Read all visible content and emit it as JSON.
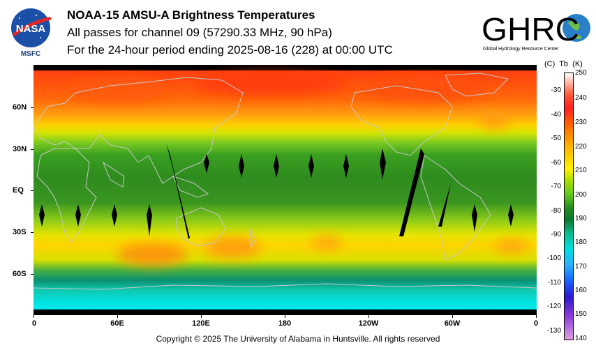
{
  "header": {
    "title": "NOAA-15 AMSU-A Brightness Temperatures",
    "line2": "All passes for channel 09 (57290.33 MHz, 90 hPa)",
    "line3": "For the 24-hour period ending 2025-08-16 (228) at 00:00 UTC"
  },
  "logos": {
    "nasa_text": "NASA",
    "nasa_sub": "MSFC",
    "ghrc_text": "GHRC",
    "ghrc_sub": "Global Hydrology Resource Center"
  },
  "map": {
    "x_labels": [
      "0",
      "60E",
      "120E",
      "180",
      "120W",
      "60W",
      "0"
    ],
    "y_labels": [
      "60N",
      "30N",
      "EQ",
      "30S",
      "60S"
    ]
  },
  "colorbar": {
    "header_c": "(C)",
    "header_tb": "Tb",
    "header_k": "(K)",
    "kelvin_labels": [
      "250",
      "240",
      "230",
      "220",
      "210",
      "200",
      "190",
      "180",
      "170",
      "160",
      "150",
      "140"
    ],
    "celsius_labels": [
      "-30",
      "-40",
      "-50",
      "-60",
      "-70",
      "-80",
      "-90",
      "-100",
      "-110",
      "-120",
      "-130"
    ]
  },
  "footer": {
    "copyright": "Copyright © 2025 The University of Alabama in Huntsville.  All rights reserved"
  },
  "colors": {
    "arctic": "#ff4a10",
    "mid_lat": "#ffd000",
    "tropics": "#2e8b1e",
    "southern_ocean": "#00d8d8",
    "coastline": "#c8c8c8"
  }
}
